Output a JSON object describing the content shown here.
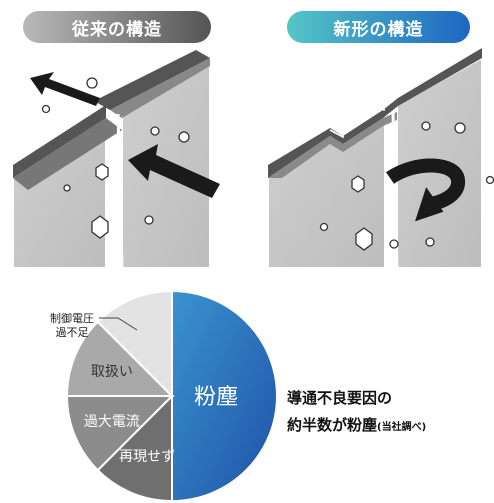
{
  "headings": {
    "old_structure": "従来の構造",
    "new_structure": "新形の構造"
  },
  "caption": {
    "line1": "導通不良要因の",
    "line2_main": "約半数が粉塵",
    "line2_note": "(当社調べ)"
  },
  "colors": {
    "old_pill_start": "#b9b9b9",
    "old_pill_end": "#555555",
    "new_pill_start": "#54c6c6",
    "new_pill_end": "#1d66c4",
    "dust_slice_start": "#3a93cf",
    "dust_slice_end": "#1f52a8"
  },
  "icons": {
    "old_arrows": "straight-arrow-icon",
    "new_arrow": "u-turn-arrow-icon"
  },
  "chart_data": {
    "type": "pie",
    "slices": [
      {
        "label": "粉塵",
        "value": 50
      },
      {
        "label": "再現せず",
        "value": 12.5
      },
      {
        "label": "過大電流",
        "value": 12.5
      },
      {
        "label": "取扱い",
        "value": 12.5
      },
      {
        "label": "制御電圧\n過不足",
        "value": 12.5
      }
    ],
    "callout_label_lines": [
      "制御電圧",
      "過不足"
    ]
  }
}
